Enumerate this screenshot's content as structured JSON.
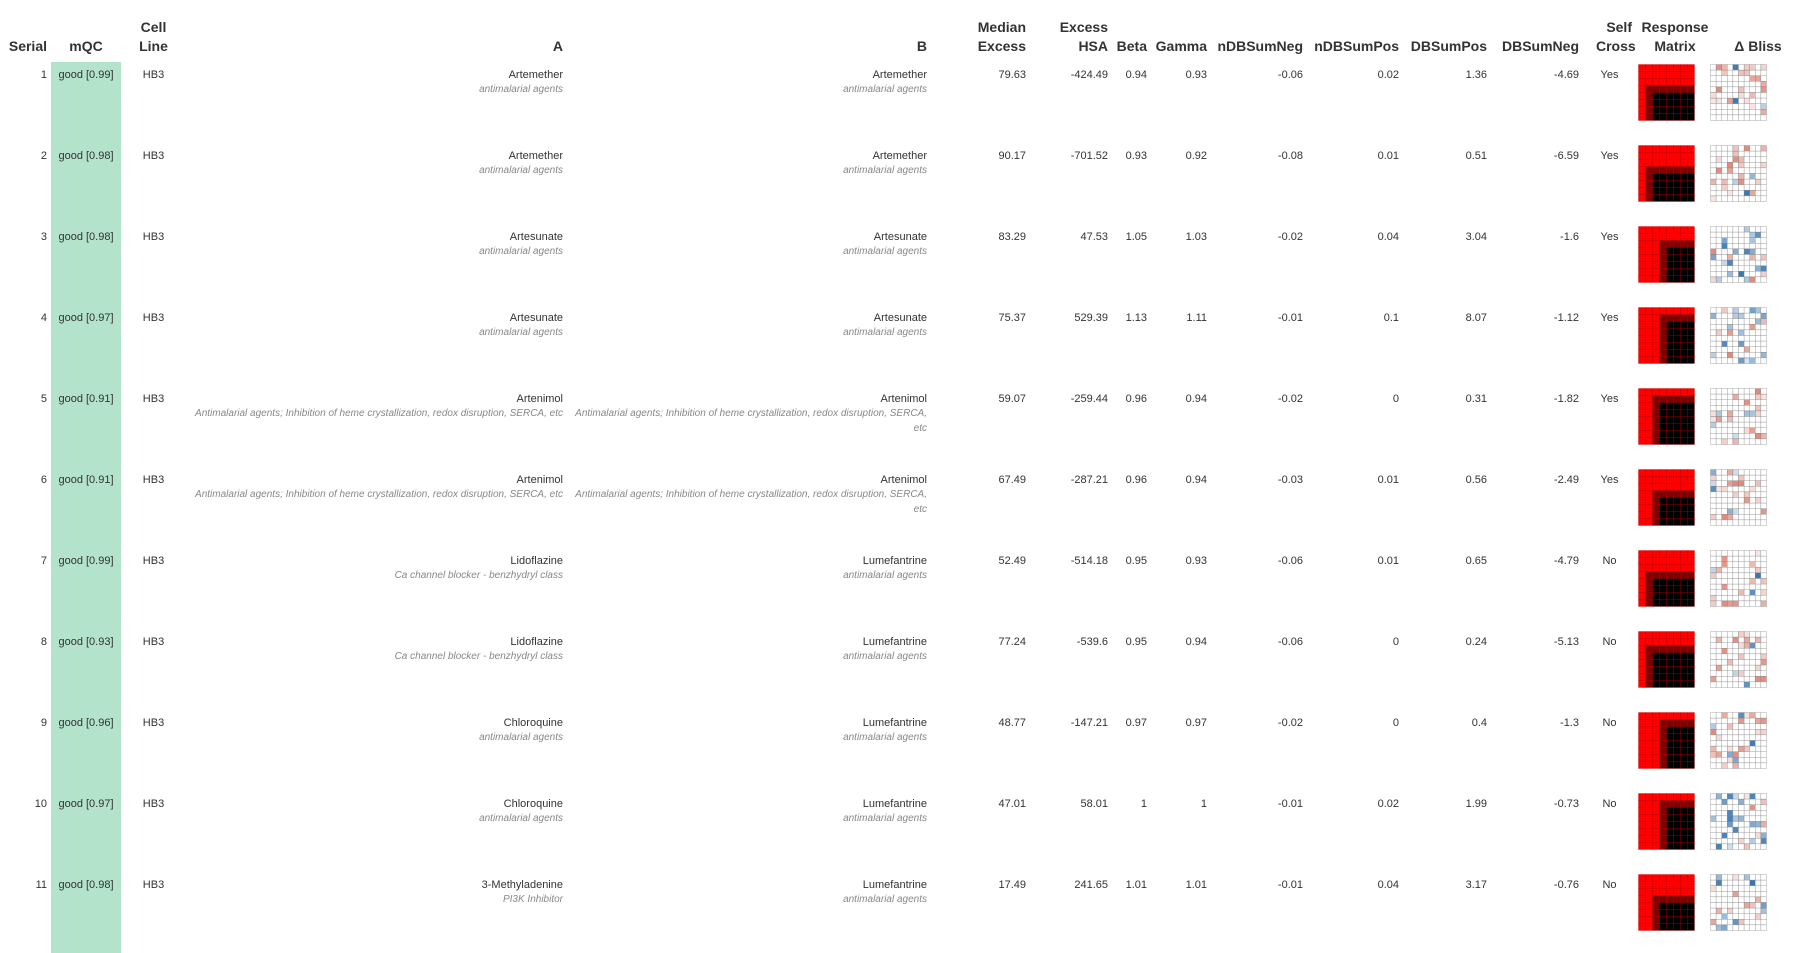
{
  "columns": [
    "Serial",
    "mQC",
    "Cell Line",
    "A",
    "B",
    "Median Excess",
    "Excess HSA",
    "Beta",
    "Gamma",
    "nDBSumNeg",
    "nDBSumPos",
    "DBSumPos",
    "DBSumNeg",
    "Self Cross",
    "Response Matrix",
    "Δ Bliss"
  ],
  "colors": {
    "mqc_good": "#b3e3cb",
    "response_high": "#ff0000",
    "response_low": "#000000",
    "bliss_neg": "#d6604d",
    "bliss_pos": "#2166ac",
    "grid": "#999999"
  },
  "rows": [
    {
      "serial": "1",
      "mqc": "good [0.99]",
      "cell_line": "HB3",
      "a_name": "Artemether",
      "a_class": "antimalarial agents",
      "b_name": "Artemether",
      "b_class": "antimalarial agents",
      "median_excess": "79.63",
      "excess_hsa": "-424.49",
      "beta": "0.94",
      "gamma": "0.93",
      "ndbsumneg": "-0.06",
      "ndbsumpos": "0.02",
      "dbsumpos": "1.36",
      "dbsumneg": "-4.69",
      "self_cross": "Yes"
    },
    {
      "serial": "2",
      "mqc": "good [0.98]",
      "cell_line": "HB3",
      "a_name": "Artemether",
      "a_class": "antimalarial agents",
      "b_name": "Artemether",
      "b_class": "antimalarial agents",
      "median_excess": "90.17",
      "excess_hsa": "-701.52",
      "beta": "0.93",
      "gamma": "0.92",
      "ndbsumneg": "-0.08",
      "ndbsumpos": "0.01",
      "dbsumpos": "0.51",
      "dbsumneg": "-6.59",
      "self_cross": "Yes"
    },
    {
      "serial": "3",
      "mqc": "good [0.98]",
      "cell_line": "HB3",
      "a_name": "Artesunate",
      "a_class": "antimalarial agents",
      "b_name": "Artesunate",
      "b_class": "antimalarial agents",
      "median_excess": "83.29",
      "excess_hsa": "47.53",
      "beta": "1.05",
      "gamma": "1.03",
      "ndbsumneg": "-0.02",
      "ndbsumpos": "0.04",
      "dbsumpos": "3.04",
      "dbsumneg": "-1.6",
      "self_cross": "Yes"
    },
    {
      "serial": "4",
      "mqc": "good [0.97]",
      "cell_line": "HB3",
      "a_name": "Artesunate",
      "a_class": "antimalarial agents",
      "b_name": "Artesunate",
      "b_class": "antimalarial agents",
      "median_excess": "75.37",
      "excess_hsa": "529.39",
      "beta": "1.13",
      "gamma": "1.11",
      "ndbsumneg": "-0.01",
      "ndbsumpos": "0.1",
      "dbsumpos": "8.07",
      "dbsumneg": "-1.12",
      "self_cross": "Yes"
    },
    {
      "serial": "5",
      "mqc": "good [0.91]",
      "cell_line": "HB3",
      "a_name": "Artenimol",
      "a_class": "Antimalarial agents; Inhibition of heme crystallization, redox disruption, SERCA, etc",
      "b_name": "Artenimol",
      "b_class": "Antimalarial agents; Inhibition of heme crystallization, redox disruption, SERCA, etc",
      "median_excess": "59.07",
      "excess_hsa": "-259.44",
      "beta": "0.96",
      "gamma": "0.94",
      "ndbsumneg": "-0.02",
      "ndbsumpos": "0",
      "dbsumpos": "0.31",
      "dbsumneg": "-1.82",
      "self_cross": "Yes"
    },
    {
      "serial": "6",
      "mqc": "good [0.91]",
      "cell_line": "HB3",
      "a_name": "Artenimol",
      "a_class": "Antimalarial agents; Inhibition of heme crystallization, redox disruption, SERCA, etc",
      "b_name": "Artenimol",
      "b_class": "Antimalarial agents; Inhibition of heme crystallization, redox disruption, SERCA, etc",
      "median_excess": "67.49",
      "excess_hsa": "-287.21",
      "beta": "0.96",
      "gamma": "0.94",
      "ndbsumneg": "-0.03",
      "ndbsumpos": "0.01",
      "dbsumpos": "0.56",
      "dbsumneg": "-2.49",
      "self_cross": "Yes"
    },
    {
      "serial": "7",
      "mqc": "good [0.99]",
      "cell_line": "HB3",
      "a_name": "Lidoflazine",
      "a_class": "Ca channel blocker - benzhydryl class",
      "b_name": "Lumefantrine",
      "b_class": "antimalarial agents",
      "median_excess": "52.49",
      "excess_hsa": "-514.18",
      "beta": "0.95",
      "gamma": "0.93",
      "ndbsumneg": "-0.06",
      "ndbsumpos": "0.01",
      "dbsumpos": "0.65",
      "dbsumneg": "-4.79",
      "self_cross": "No"
    },
    {
      "serial": "8",
      "mqc": "good [0.93]",
      "cell_line": "HB3",
      "a_name": "Lidoflazine",
      "a_class": "Ca channel blocker - benzhydryl class",
      "b_name": "Lumefantrine",
      "b_class": "antimalarial agents",
      "median_excess": "77.24",
      "excess_hsa": "-539.6",
      "beta": "0.95",
      "gamma": "0.94",
      "ndbsumneg": "-0.06",
      "ndbsumpos": "0",
      "dbsumpos": "0.24",
      "dbsumneg": "-5.13",
      "self_cross": "No"
    },
    {
      "serial": "9",
      "mqc": "good [0.96]",
      "cell_line": "HB3",
      "a_name": "Chloroquine",
      "a_class": "antimalarial agents",
      "b_name": "Lumefantrine",
      "b_class": "antimalarial agents",
      "median_excess": "48.77",
      "excess_hsa": "-147.21",
      "beta": "0.97",
      "gamma": "0.97",
      "ndbsumneg": "-0.02",
      "ndbsumpos": "0",
      "dbsumpos": "0.4",
      "dbsumneg": "-1.3",
      "self_cross": "No"
    },
    {
      "serial": "10",
      "mqc": "good [0.97]",
      "cell_line": "HB3",
      "a_name": "Chloroquine",
      "a_class": "antimalarial agents",
      "b_name": "Lumefantrine",
      "b_class": "antimalarial agents",
      "median_excess": "47.01",
      "excess_hsa": "58.01",
      "beta": "1",
      "gamma": "1",
      "ndbsumneg": "-0.01",
      "ndbsumpos": "0.02",
      "dbsumpos": "1.99",
      "dbsumneg": "-0.73",
      "self_cross": "No"
    },
    {
      "serial": "11",
      "mqc": "good [0.98]",
      "cell_line": "HB3",
      "a_name": "3-Methyladenine",
      "a_class": "PI3K Inhibitor",
      "b_name": "Lumefantrine",
      "b_class": "antimalarial agents",
      "median_excess": "17.49",
      "excess_hsa": "241.65",
      "beta": "1.01",
      "gamma": "1.01",
      "ndbsumneg": "-0.01",
      "ndbsumpos": "0.04",
      "dbsumpos": "3.17",
      "dbsumneg": "-0.76",
      "self_cross": "No"
    }
  ]
}
